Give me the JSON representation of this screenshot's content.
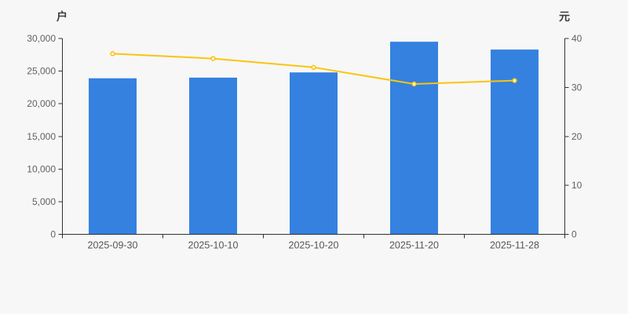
{
  "chart_data": {
    "type": "combo",
    "title": "",
    "categories": [
      "2025-09-30",
      "2025-10-10",
      "2025-10-20",
      "2025-11-20",
      "2025-11-28"
    ],
    "series": [
      {
        "id": "bar-series",
        "type": "bar",
        "y_axis": "left",
        "color": "#3481e0",
        "values": [
          23900,
          24000,
          24800,
          29500,
          28300
        ]
      },
      {
        "id": "line-series",
        "type": "line",
        "y_axis": "right",
        "color": "#fbc40f",
        "marker": {
          "shape": "circle",
          "fill": "#ffffff",
          "stroke": "#fbc40f"
        },
        "values": [
          36.9,
          35.9,
          34.1,
          30.7,
          31.4
        ]
      }
    ],
    "axes": {
      "left": {
        "name": "户",
        "min": 0,
        "max": 30000,
        "tick_values": [
          0,
          5000,
          10000,
          15000,
          20000,
          25000,
          30000
        ],
        "tick_labels": [
          "0",
          "5,000",
          "10,000",
          "15,000",
          "20,000",
          "25,000",
          "30,000"
        ]
      },
      "right": {
        "name": "元",
        "min": 0,
        "max": 40,
        "tick_values": [
          0,
          10,
          20,
          30,
          40
        ],
        "tick_labels": [
          "0",
          "10",
          "20",
          "30",
          "40"
        ]
      }
    },
    "grid_lines": false,
    "legend": null,
    "colors": {
      "background": "#f7f7f7",
      "axis_line": "#333333",
      "tick_text": "#616161"
    }
  }
}
